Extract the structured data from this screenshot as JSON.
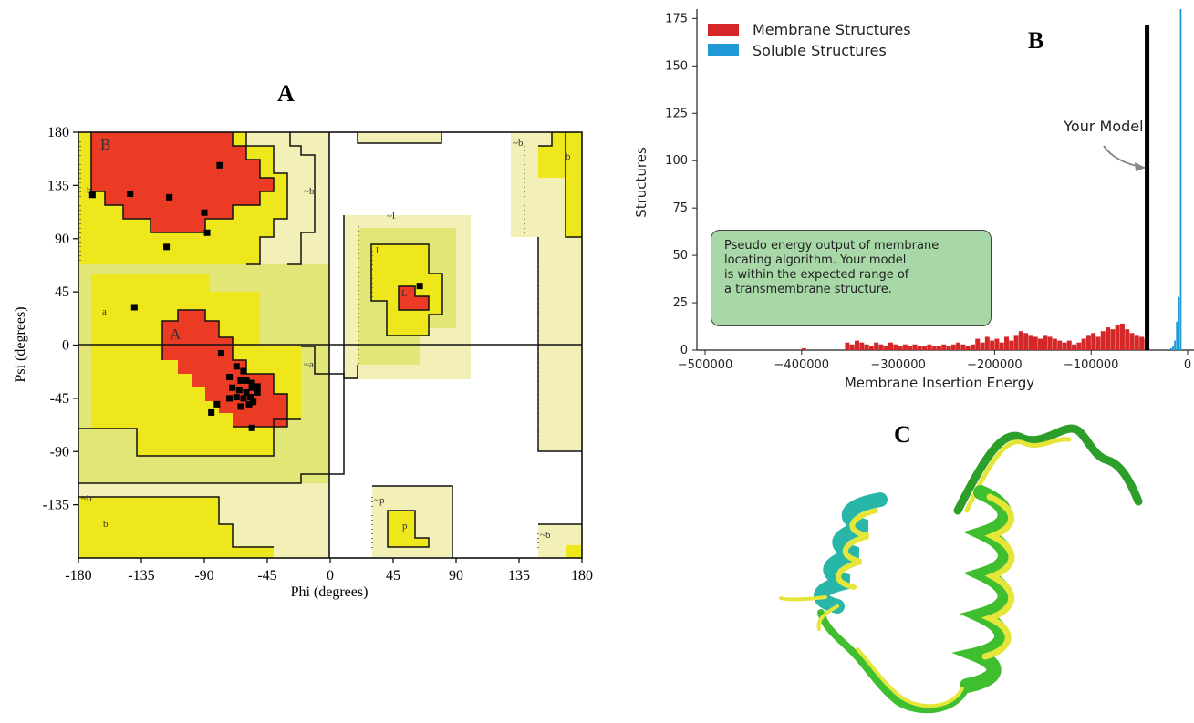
{
  "panels": {
    "a_label": "A",
    "b_label": "B",
    "c_label": "C"
  },
  "colors": {
    "core_red": "#ec3b25",
    "allowed_yellow": "#ede71b",
    "generous_yellow": "#e2e676",
    "disallowed_pale": "#f2f0b6",
    "membrane_red": "#d62728",
    "soluble_blue": "#1f9ad6",
    "note_box_green": "#a8d8a8",
    "helix_green": "#3fbf2f",
    "helix_yellow": "#e6e63a",
    "helix_cyan": "#27b6a8"
  },
  "chart_data": [
    {
      "type": "scatter",
      "subtype": "ramachandran",
      "xlabel": "Phi (degrees)",
      "ylabel": "Psi (degrees)",
      "xlim": [
        -180,
        180
      ],
      "ylim": [
        -180,
        180
      ],
      "x_ticks": [
        "-180",
        "-135",
        "-90",
        "-45",
        "0",
        "45",
        "90",
        "135",
        "180"
      ],
      "y_ticks": [
        "180",
        "135",
        "90",
        "45",
        "0",
        "-45",
        "-90",
        "-135"
      ],
      "region_labels": [
        "B",
        "b",
        "A",
        "a",
        "L",
        "l",
        "~b",
        "~a",
        "~l",
        "~p",
        "p"
      ],
      "points": [
        {
          "x": -170,
          "y": 127
        },
        {
          "x": -143,
          "y": 128
        },
        {
          "x": -115,
          "y": 125
        },
        {
          "x": -79,
          "y": 152
        },
        {
          "x": -90,
          "y": 112
        },
        {
          "x": -88,
          "y": 95
        },
        {
          "x": -117,
          "y": 83
        },
        {
          "x": -140,
          "y": 32
        },
        {
          "x": -78,
          "y": -7
        },
        {
          "x": -67,
          "y": -18
        },
        {
          "x": -62,
          "y": -22
        },
        {
          "x": -72,
          "y": -27
        },
        {
          "x": -70,
          "y": -36
        },
        {
          "x": -64,
          "y": -30
        },
        {
          "x": -60,
          "y": -30
        },
        {
          "x": -56,
          "y": -32
        },
        {
          "x": -65,
          "y": -38
        },
        {
          "x": -60,
          "y": -40
        },
        {
          "x": -56,
          "y": -36
        },
        {
          "x": -52,
          "y": -40
        },
        {
          "x": -67,
          "y": -44
        },
        {
          "x": -62,
          "y": -45
        },
        {
          "x": -57,
          "y": -44
        },
        {
          "x": -64,
          "y": -52
        },
        {
          "x": -58,
          "y": -50
        },
        {
          "x": -72,
          "y": -45
        },
        {
          "x": -55,
          "y": -48
        },
        {
          "x": -52,
          "y": -35
        },
        {
          "x": -85,
          "y": -57
        },
        {
          "x": -81,
          "y": -50
        },
        {
          "x": -56,
          "y": -70
        },
        {
          "x": 64,
          "y": 50
        }
      ]
    },
    {
      "type": "bar",
      "subtype": "histogram",
      "xlabel": "Membrane Insertion Energy",
      "ylabel": "Structures",
      "xlim": [
        -500000,
        0
      ],
      "ylim": [
        0,
        180
      ],
      "x_ticks": [
        "−500000",
        "−400000",
        "−300000",
        "−200000",
        "−100000",
        "0"
      ],
      "y_ticks": [
        "0",
        "25",
        "50",
        "75",
        "100",
        "125",
        "150",
        "175"
      ],
      "legend_position": "top-left",
      "series": [
        {
          "name": "Membrane Structures",
          "bin_width": 5000,
          "bins": [
            {
              "x": -400000,
              "y": 1
            },
            {
              "x": -355000,
              "y": 4
            },
            {
              "x": -350000,
              "y": 3
            },
            {
              "x": -345000,
              "y": 5
            },
            {
              "x": -340000,
              "y": 4
            },
            {
              "x": -335000,
              "y": 3
            },
            {
              "x": -330000,
              "y": 2
            },
            {
              "x": -325000,
              "y": 4
            },
            {
              "x": -320000,
              "y": 3
            },
            {
              "x": -315000,
              "y": 2
            },
            {
              "x": -310000,
              "y": 4
            },
            {
              "x": -305000,
              "y": 3
            },
            {
              "x": -300000,
              "y": 2
            },
            {
              "x": -295000,
              "y": 3
            },
            {
              "x": -290000,
              "y": 2
            },
            {
              "x": -285000,
              "y": 3
            },
            {
              "x": -280000,
              "y": 2
            },
            {
              "x": -275000,
              "y": 2
            },
            {
              "x": -270000,
              "y": 3
            },
            {
              "x": -265000,
              "y": 2
            },
            {
              "x": -260000,
              "y": 2
            },
            {
              "x": -255000,
              "y": 3
            },
            {
              "x": -250000,
              "y": 2
            },
            {
              "x": -245000,
              "y": 3
            },
            {
              "x": -240000,
              "y": 4
            },
            {
              "x": -235000,
              "y": 3
            },
            {
              "x": -230000,
              "y": 2
            },
            {
              "x": -225000,
              "y": 3
            },
            {
              "x": -220000,
              "y": 6
            },
            {
              "x": -215000,
              "y": 4
            },
            {
              "x": -210000,
              "y": 7
            },
            {
              "x": -205000,
              "y": 5
            },
            {
              "x": -200000,
              "y": 6
            },
            {
              "x": -195000,
              "y": 4
            },
            {
              "x": -190000,
              "y": 7
            },
            {
              "x": -185000,
              "y": 5
            },
            {
              "x": -180000,
              "y": 8
            },
            {
              "x": -175000,
              "y": 10
            },
            {
              "x": -170000,
              "y": 9
            },
            {
              "x": -165000,
              "y": 8
            },
            {
              "x": -160000,
              "y": 7
            },
            {
              "x": -155000,
              "y": 6
            },
            {
              "x": -150000,
              "y": 8
            },
            {
              "x": -145000,
              "y": 7
            },
            {
              "x": -140000,
              "y": 6
            },
            {
              "x": -135000,
              "y": 5
            },
            {
              "x": -130000,
              "y": 4
            },
            {
              "x": -125000,
              "y": 5
            },
            {
              "x": -120000,
              "y": 3
            },
            {
              "x": -115000,
              "y": 4
            },
            {
              "x": -110000,
              "y": 6
            },
            {
              "x": -105000,
              "y": 8
            },
            {
              "x": -100000,
              "y": 9
            },
            {
              "x": -95000,
              "y": 7
            },
            {
              "x": -90000,
              "y": 10
            },
            {
              "x": -85000,
              "y": 12
            },
            {
              "x": -80000,
              "y": 11
            },
            {
              "x": -75000,
              "y": 13
            },
            {
              "x": -70000,
              "y": 14
            },
            {
              "x": -65000,
              "y": 11
            },
            {
              "x": -60000,
              "y": 9
            },
            {
              "x": -55000,
              "y": 8
            },
            {
              "x": -50000,
              "y": 7
            },
            {
              "x": -45000,
              "y": 6
            }
          ]
        },
        {
          "name": "Soluble Structures",
          "bin_width": 2000,
          "bins": [
            {
              "x": -18000,
              "y": 1
            },
            {
              "x": -16000,
              "y": 2
            },
            {
              "x": -14000,
              "y": 5
            },
            {
              "x": -12000,
              "y": 15
            },
            {
              "x": -10000,
              "y": 28
            },
            {
              "x": -8000,
              "y": 180
            }
          ]
        }
      ],
      "annotations": [
        {
          "text": "Your Model",
          "x": -42000,
          "kind": "vertical-line"
        }
      ],
      "note": [
        "Pseudo energy output of membrane",
        "locating algorithm. Your model",
        "is within the expected range of",
        "a transmembrane structure."
      ]
    }
  ]
}
